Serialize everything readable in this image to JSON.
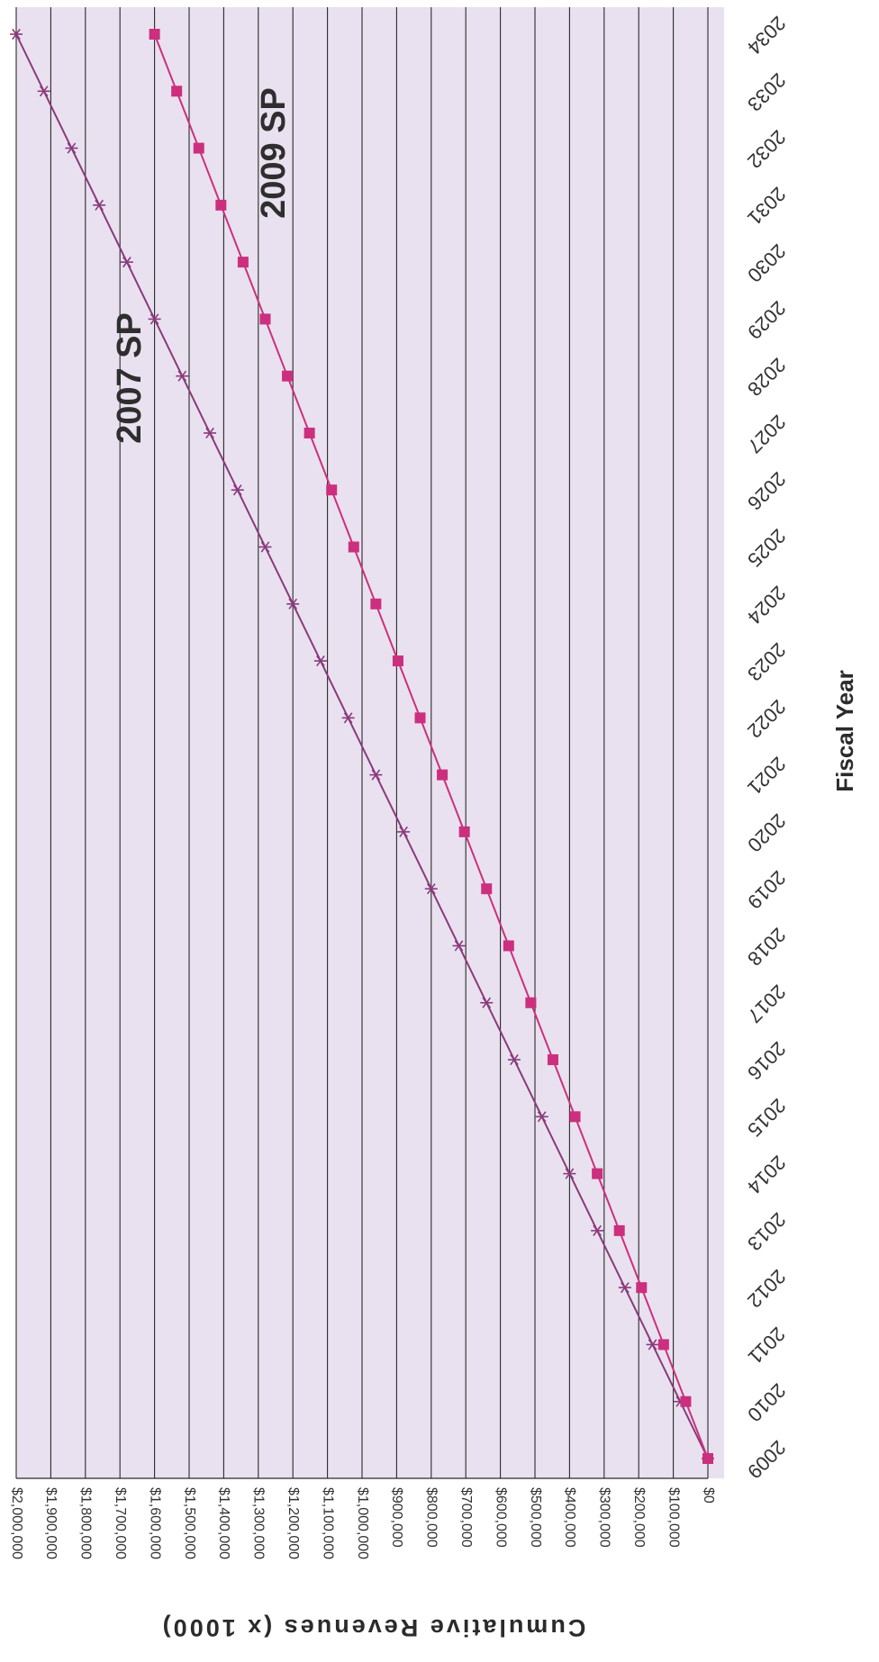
{
  "chart_data": {
    "type": "line",
    "title": "",
    "xlabel": "Fiscal Year",
    "ylabel": "Cumulative Revenues (x 1000)",
    "x": [
      2009,
      2010,
      2011,
      2012,
      2013,
      2014,
      2015,
      2016,
      2017,
      2018,
      2019,
      2020,
      2021,
      2022,
      2023,
      2024,
      2025,
      2026,
      2027,
      2028,
      2029,
      2030,
      2031,
      2032,
      2033,
      2034
    ],
    "x_tick_labels": [
      "2009",
      "2010",
      "2011",
      "2012",
      "2013",
      "2014",
      "2015",
      "2016",
      "2017",
      "2018",
      "2019",
      "2020",
      "2021",
      "2022",
      "2023",
      "2024",
      "2025",
      "2026",
      "2027",
      "2028",
      "2029",
      "2030",
      "2031",
      "2032",
      "2033",
      "2034"
    ],
    "ylim": [
      0,
      2000000
    ],
    "y_ticks": [
      0,
      100000,
      200000,
      300000,
      400000,
      500000,
      600000,
      700000,
      800000,
      900000,
      1000000,
      1100000,
      1200000,
      1300000,
      1400000,
      1500000,
      1600000,
      1700000,
      1800000,
      1900000,
      2000000
    ],
    "y_tick_labels": [
      "$0",
      "$100,000",
      "$200,000",
      "$300,000",
      "$400,000",
      "$500,000",
      "$600,000",
      "$700,000",
      "$800,000",
      "$900,000",
      "$1,000,000",
      "$1,100,000",
      "$1,200,000",
      "$1,300,000",
      "$1,400,000",
      "$1,500,000",
      "$1,600,000",
      "$1,700,000",
      "$1,800,000",
      "$1,900,000",
      "$2,000,000"
    ],
    "grid": true,
    "orientation": "rotated 90° clockwise",
    "series": [
      {
        "name": "2007 SP",
        "marker": "asterisk",
        "color": "#8a3a7c",
        "values": [
          0,
          80000,
          160000,
          240000,
          320000,
          400000,
          480000,
          560000,
          640000,
          720000,
          800000,
          880000,
          960000,
          1040000,
          1120000,
          1200000,
          1280000,
          1360000,
          1440000,
          1520000,
          1600000,
          1680000,
          1760000,
          1840000,
          1920000,
          2000000
        ]
      },
      {
        "name": "2009 SP",
        "marker": "square",
        "color": "#cc2f7e",
        "values": [
          0,
          64000,
          128000,
          192000,
          256000,
          320000,
          384000,
          448000,
          512000,
          576000,
          640000,
          704000,
          768000,
          832000,
          896000,
          960000,
          1024000,
          1088000,
          1152000,
          1216000,
          1280000,
          1344000,
          1408000,
          1472000,
          1536000,
          1600000
        ]
      }
    ],
    "annotations": [
      {
        "text": "2007 SP",
        "series": 0
      },
      {
        "text": "2009 SP",
        "series": 1
      }
    ],
    "colors": {
      "plot_bg": "#e9e1ef",
      "grid": "#2a2a2a",
      "tick_text": "#333333",
      "axis_title": "#2b2b2b"
    }
  }
}
